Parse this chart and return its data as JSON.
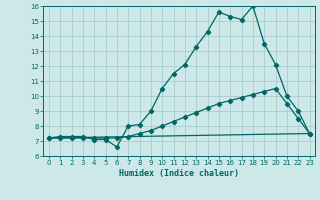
{
  "xlabel": "Humidex (Indice chaleur)",
  "bg_color": "#cce8e8",
  "grid_color": "#aacccc",
  "line_color": "#006666",
  "xlim": [
    -0.5,
    23.5
  ],
  "ylim": [
    6,
    16
  ],
  "xticks": [
    0,
    1,
    2,
    3,
    4,
    5,
    6,
    7,
    8,
    9,
    10,
    11,
    12,
    13,
    14,
    15,
    16,
    17,
    18,
    19,
    20,
    21,
    22,
    23
  ],
  "yticks": [
    6,
    7,
    8,
    9,
    10,
    11,
    12,
    13,
    14,
    15,
    16
  ],
  "line1_x": [
    0,
    1,
    2,
    3,
    4,
    5,
    6,
    7,
    8,
    9,
    10,
    11,
    12,
    13,
    14,
    15,
    16,
    17,
    18,
    19,
    20,
    21,
    22,
    23
  ],
  "line1_y": [
    7.2,
    7.3,
    7.3,
    7.3,
    7.1,
    7.1,
    6.6,
    8.0,
    8.1,
    9.0,
    10.5,
    11.5,
    12.1,
    13.3,
    14.3,
    15.6,
    15.3,
    15.1,
    16.0,
    13.5,
    12.1,
    10.0,
    9.0,
    7.5
  ],
  "line2_x": [
    0,
    1,
    2,
    3,
    4,
    5,
    6,
    7,
    8,
    9,
    10,
    11,
    12,
    13,
    14,
    15,
    16,
    17,
    18,
    19,
    20,
    21,
    22,
    23
  ],
  "line2_y": [
    7.2,
    7.2,
    7.2,
    7.2,
    7.2,
    7.2,
    7.2,
    7.3,
    7.5,
    7.7,
    8.0,
    8.3,
    8.6,
    8.9,
    9.2,
    9.5,
    9.7,
    9.9,
    10.1,
    10.3,
    10.5,
    9.5,
    8.5,
    7.5
  ],
  "line3_x": [
    0,
    23
  ],
  "line3_y": [
    7.2,
    7.5
  ]
}
